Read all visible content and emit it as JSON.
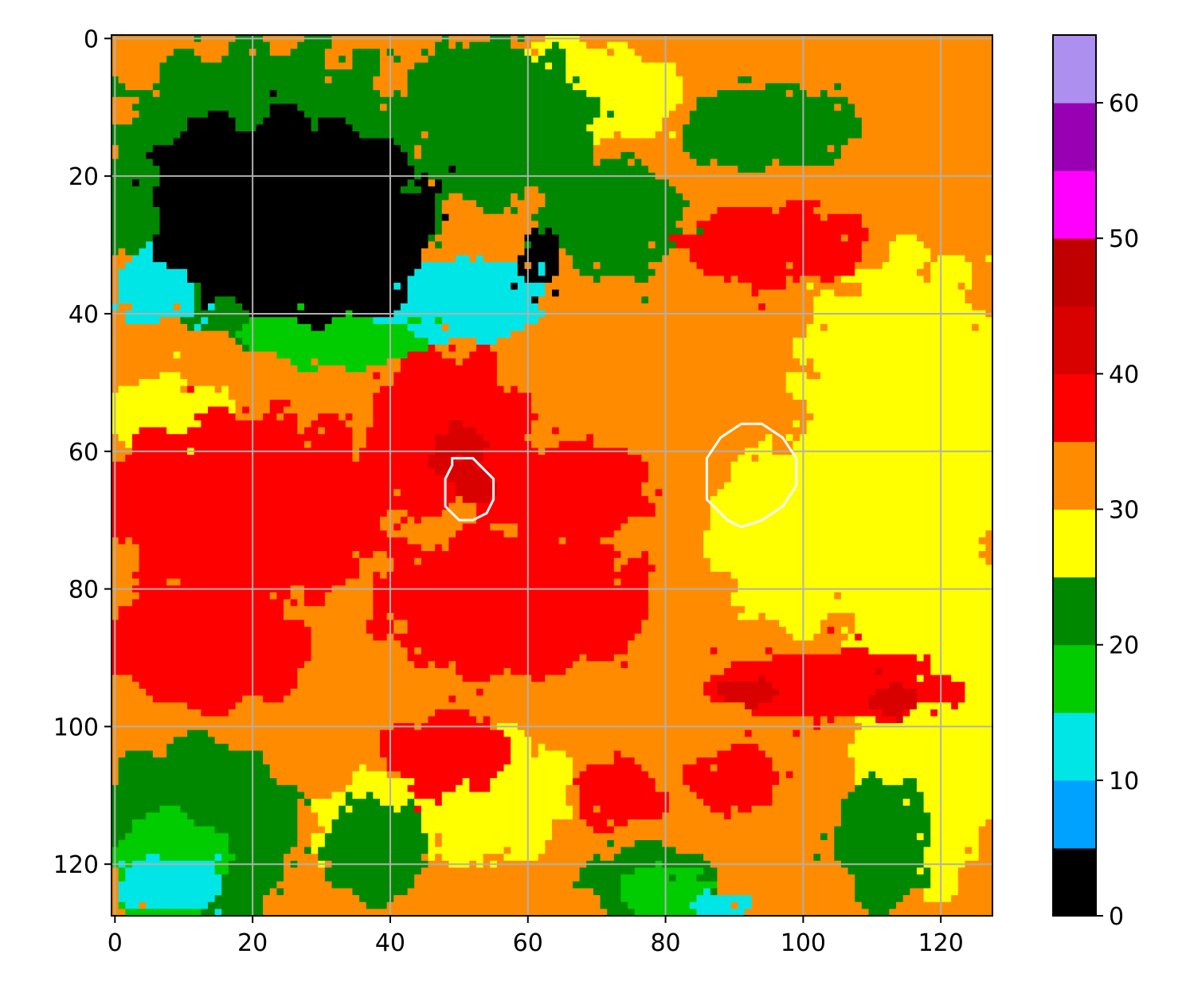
{
  "chart_data": {
    "type": "heatmap",
    "title": "",
    "xlabel": "",
    "ylabel": "",
    "grid": true,
    "y_inverted": true,
    "xlim": [
      -0.5,
      127.5
    ],
    "ylim": [
      127.5,
      -0.5
    ],
    "x_ticks": [
      0,
      20,
      40,
      60,
      80,
      100,
      120
    ],
    "y_ticks": [
      0,
      20,
      40,
      60,
      80,
      100,
      120
    ],
    "colorbar": {
      "min": 0,
      "max": 65,
      "step": 5,
      "ticks": [
        0,
        10,
        20,
        30,
        40,
        50,
        60
      ],
      "colors": [
        "#000000",
        "#00a2ff",
        "#00e6e6",
        "#00cc00",
        "#008800",
        "#ffff00",
        "#ff8c00",
        "#ff0000",
        "#d90000",
        "#c00000",
        "#ff00ff",
        "#9900b3",
        "#ad8fef"
      ]
    },
    "grid_size": [
      128,
      128
    ],
    "regions": [
      {
        "kind": "rect",
        "x": [
          0,
          128
        ],
        "y": [
          0,
          128
        ],
        "value": 32
      },
      {
        "kind": "ellipse",
        "cx": 118,
        "cy": 95,
        "rx": 12,
        "ry": 30,
        "value": 27
      },
      {
        "kind": "ellipse",
        "cx": 115,
        "cy": 55,
        "rx": 16,
        "ry": 24,
        "value": 27
      },
      {
        "kind": "ellipse",
        "cx": 100,
        "cy": 72,
        "rx": 14,
        "ry": 14,
        "value": 27
      },
      {
        "kind": "ellipse",
        "cx": 65,
        "cy": 8,
        "rx": 18,
        "ry": 8,
        "value": 27
      },
      {
        "kind": "ellipse",
        "cx": 55,
        "cy": 110,
        "rx": 12,
        "ry": 10,
        "value": 27
      },
      {
        "kind": "ellipse",
        "cx": 8,
        "cy": 55,
        "rx": 10,
        "ry": 6,
        "value": 27
      },
      {
        "kind": "ellipse",
        "cx": 38,
        "cy": 115,
        "rx": 10,
        "ry": 8,
        "value": 27
      },
      {
        "kind": "ellipse",
        "cx": 22,
        "cy": 22,
        "rx": 26,
        "ry": 22,
        "value": 22
      },
      {
        "kind": "ellipse",
        "cx": 55,
        "cy": 12,
        "rx": 14,
        "ry": 12,
        "value": 22
      },
      {
        "kind": "ellipse",
        "cx": 72,
        "cy": 26,
        "rx": 10,
        "ry": 9,
        "value": 22
      },
      {
        "kind": "ellipse",
        "cx": 95,
        "cy": 13,
        "rx": 14,
        "ry": 6,
        "value": 22
      },
      {
        "kind": "ellipse",
        "cx": 12,
        "cy": 115,
        "rx": 14,
        "ry": 14,
        "value": 22
      },
      {
        "kind": "ellipse",
        "cx": 38,
        "cy": 118,
        "rx": 8,
        "ry": 8,
        "value": 22
      },
      {
        "kind": "ellipse",
        "cx": 78,
        "cy": 123,
        "rx": 10,
        "ry": 6,
        "value": 22
      },
      {
        "kind": "ellipse",
        "cx": 112,
        "cy": 117,
        "rx": 7,
        "ry": 10,
        "value": 22
      },
      {
        "kind": "ellipse",
        "cx": 33,
        "cy": 42,
        "rx": 14,
        "ry": 6,
        "value": 17
      },
      {
        "kind": "ellipse",
        "cx": 8,
        "cy": 120,
        "rx": 9,
        "ry": 8,
        "value": 17
      },
      {
        "kind": "ellipse",
        "cx": 80,
        "cy": 124,
        "rx": 6,
        "ry": 4,
        "value": 17
      },
      {
        "kind": "ellipse",
        "cx": 50,
        "cy": 38,
        "rx": 14,
        "ry": 6,
        "value": 12
      },
      {
        "kind": "ellipse",
        "cx": 6,
        "cy": 36,
        "rx": 6,
        "ry": 6,
        "value": 12
      },
      {
        "kind": "ellipse",
        "cx": 8,
        "cy": 123,
        "rx": 8,
        "ry": 4,
        "value": 12
      },
      {
        "kind": "ellipse",
        "cx": 88,
        "cy": 126,
        "rx": 4,
        "ry": 2,
        "value": 12
      },
      {
        "kind": "ellipse",
        "cx": 26,
        "cy": 26,
        "rx": 20,
        "ry": 15,
        "value": 2
      },
      {
        "kind": "ellipse",
        "cx": 14,
        "cy": 22,
        "rx": 9,
        "ry": 11,
        "value": 2
      },
      {
        "kind": "ellipse",
        "cx": 36,
        "cy": 36,
        "rx": 7,
        "ry": 5,
        "value": 2
      },
      {
        "kind": "ellipse",
        "cx": 62,
        "cy": 32,
        "rx": 3,
        "ry": 4,
        "value": 2
      },
      {
        "kind": "ellipse",
        "cx": 20,
        "cy": 68,
        "rx": 22,
        "ry": 14,
        "value": 37
      },
      {
        "kind": "ellipse",
        "cx": 14,
        "cy": 88,
        "rx": 14,
        "ry": 10,
        "value": 37
      },
      {
        "kind": "ellipse",
        "cx": 48,
        "cy": 57,
        "rx": 12,
        "ry": 12,
        "value": 37
      },
      {
        "kind": "ellipse",
        "cx": 65,
        "cy": 66,
        "rx": 14,
        "ry": 7,
        "value": 37
      },
      {
        "kind": "ellipse",
        "cx": 58,
        "cy": 82,
        "rx": 20,
        "ry": 11,
        "value": 37
      },
      {
        "kind": "ellipse",
        "cx": 96,
        "cy": 30,
        "rx": 14,
        "ry": 6,
        "value": 37
      },
      {
        "kind": "ellipse",
        "cx": 105,
        "cy": 94,
        "rx": 18,
        "ry": 5,
        "value": 37
      },
      {
        "kind": "ellipse",
        "cx": 48,
        "cy": 104,
        "rx": 9,
        "ry": 6,
        "value": 37
      },
      {
        "kind": "ellipse",
        "cx": 73,
        "cy": 110,
        "rx": 7,
        "ry": 5,
        "value": 37
      },
      {
        "kind": "ellipse",
        "cx": 90,
        "cy": 108,
        "rx": 7,
        "ry": 5,
        "value": 37
      },
      {
        "kind": "ellipse",
        "cx": 50,
        "cy": 60,
        "rx": 4,
        "ry": 4,
        "value": 42
      },
      {
        "kind": "ellipse",
        "cx": 52,
        "cy": 65,
        "rx": 3,
        "ry": 3,
        "value": 42
      },
      {
        "kind": "ellipse",
        "cx": 92,
        "cy": 95,
        "rx": 4,
        "ry": 2,
        "value": 42
      },
      {
        "kind": "ellipse",
        "cx": 113,
        "cy": 96,
        "rx": 4,
        "ry": 2,
        "value": 42
      }
    ],
    "noise_density": 0.09,
    "contours": [
      {
        "color": "#ffffff",
        "points": [
          [
            49,
            61
          ],
          [
            52,
            61
          ],
          [
            55,
            64
          ],
          [
            55,
            67
          ],
          [
            54,
            69
          ],
          [
            52,
            70
          ],
          [
            50,
            70
          ],
          [
            48,
            68
          ],
          [
            48,
            64
          ],
          [
            49,
            62
          ]
        ]
      },
      {
        "color": "#ffffff",
        "points": [
          [
            91,
            56
          ],
          [
            94,
            56
          ],
          [
            97,
            58
          ],
          [
            99,
            61
          ],
          [
            99,
            65
          ],
          [
            97,
            68
          ],
          [
            94,
            70
          ],
          [
            91,
            71
          ],
          [
            89,
            70
          ],
          [
            86,
            67
          ],
          [
            86,
            61
          ],
          [
            88,
            58
          ]
        ]
      }
    ]
  }
}
